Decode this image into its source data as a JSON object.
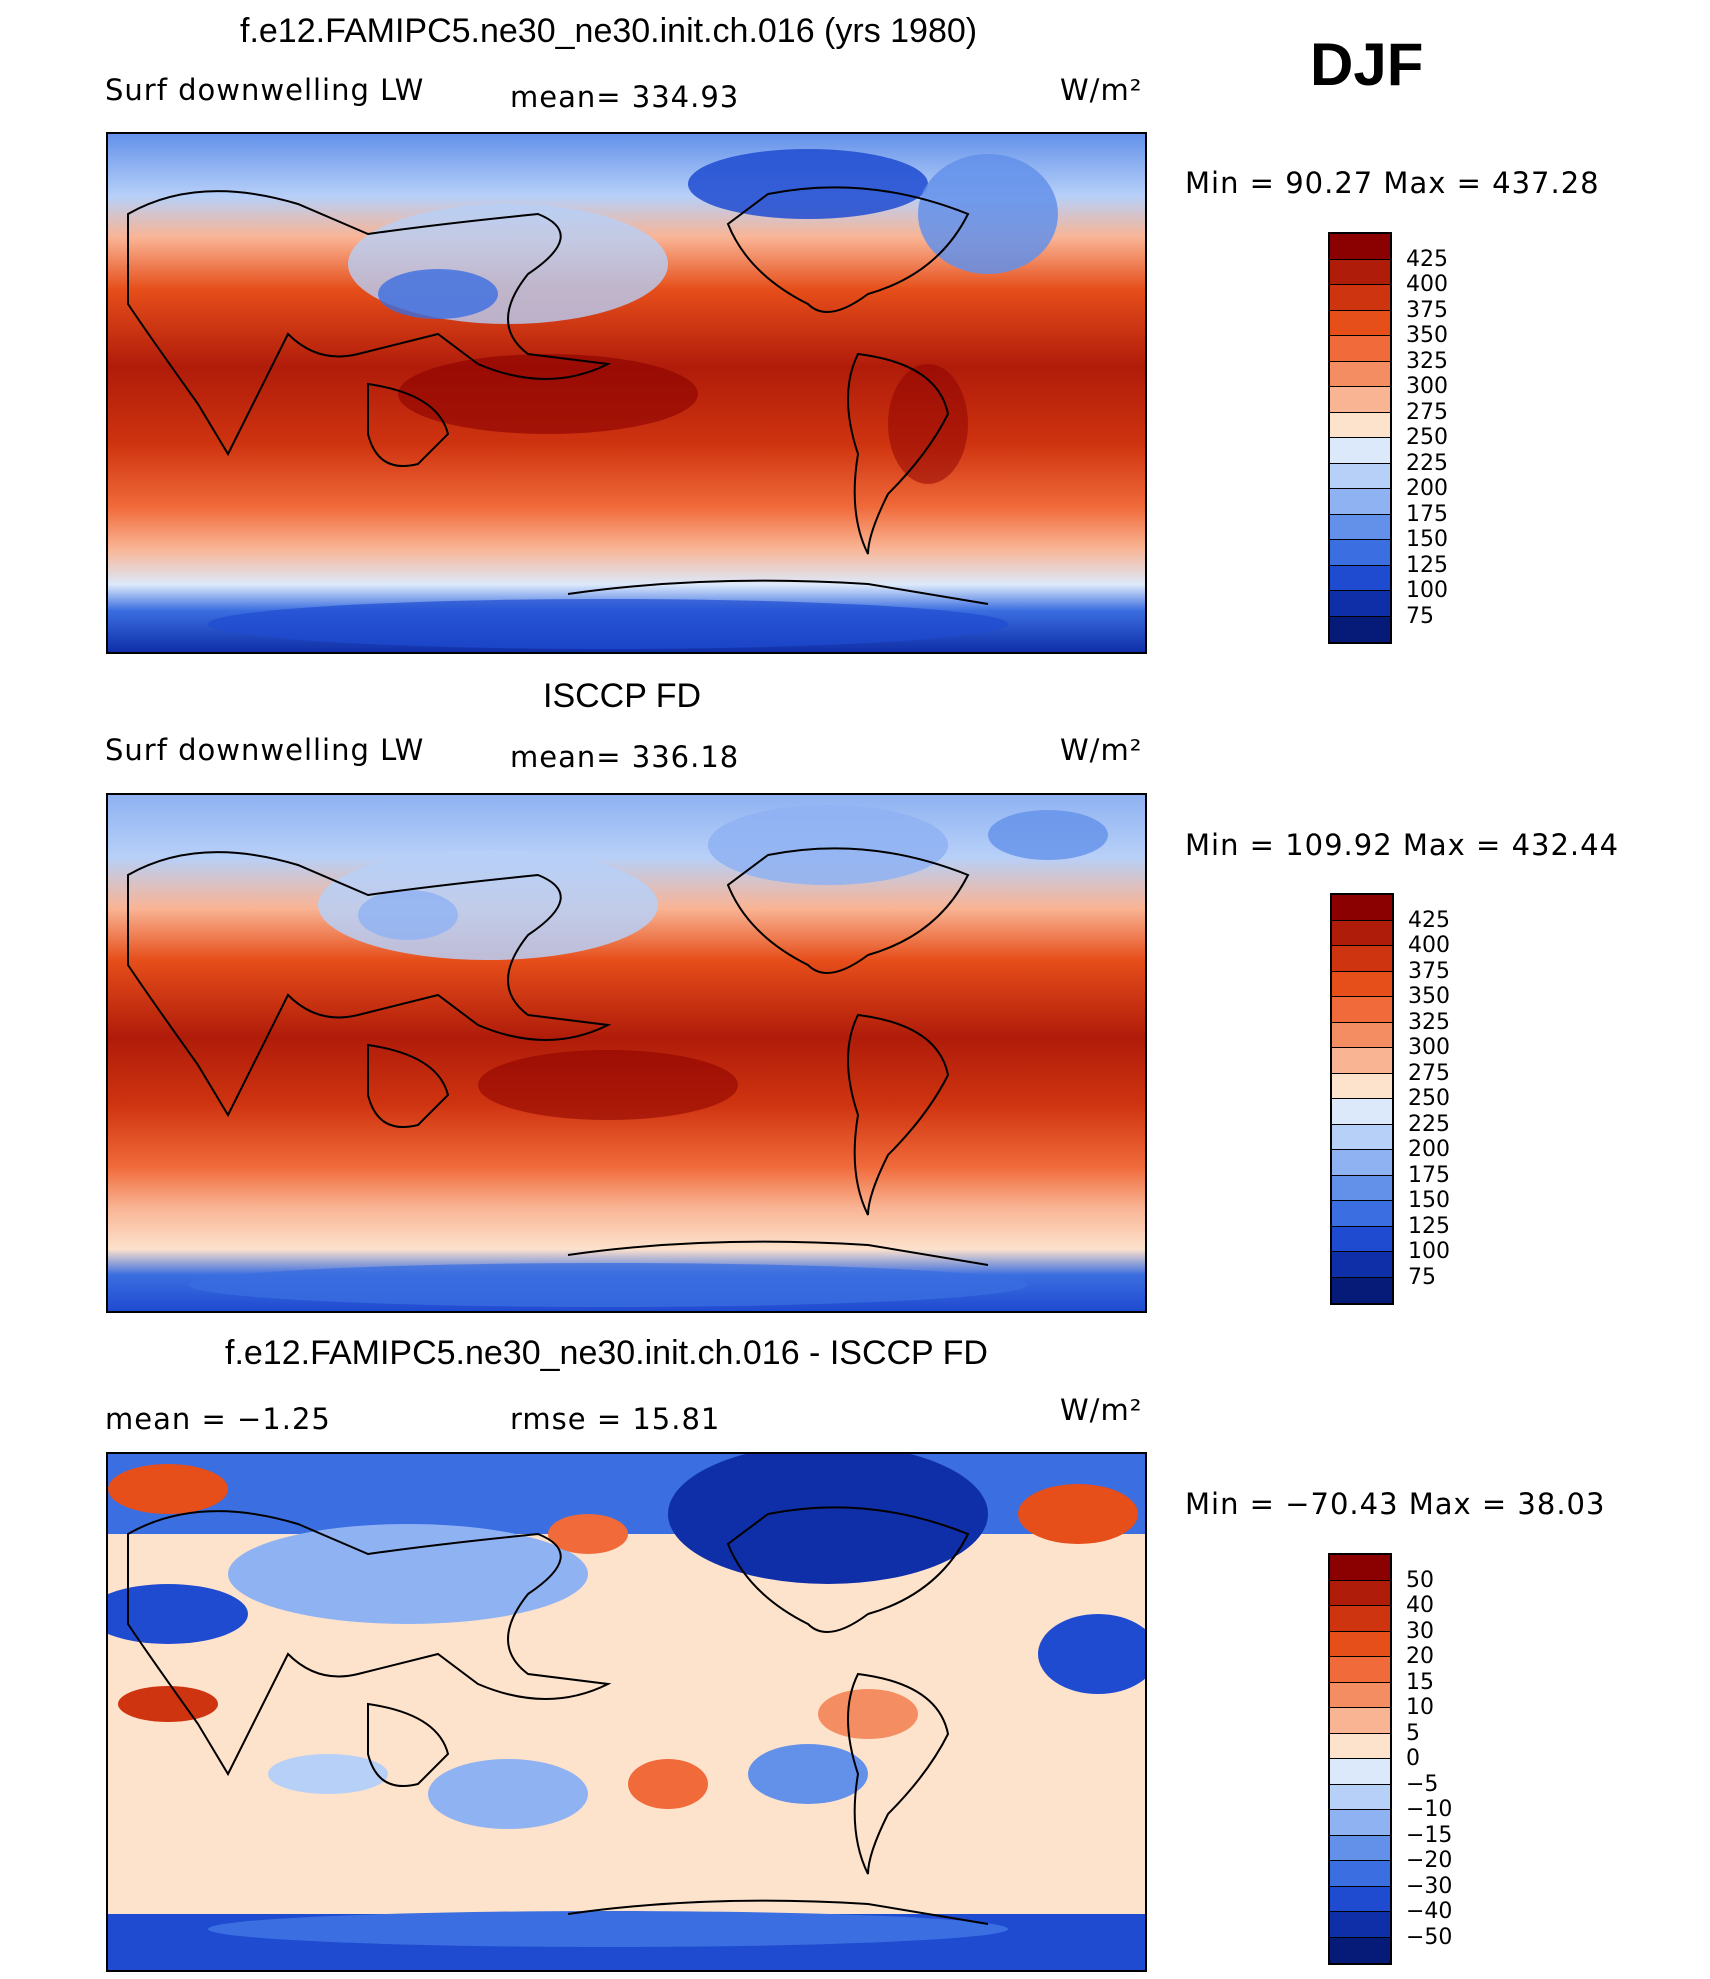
{
  "season": "DJF",
  "units_label": "W/m²",
  "panels": [
    {
      "title": "f.e12.FAMIPC5.ne30_ne30.init.ch.016 (yrs 1980)",
      "left_label": "Surf  downwelling  LW",
      "center_label": "mean=  334.93",
      "units": "W/m²",
      "minmax": "Min  =    90.27  Max  =  437.28",
      "colorbar_labels": [
        "425",
        "400",
        "375",
        "350",
        "325",
        "300",
        "275",
        "250",
        "225",
        "200",
        "175",
        "150",
        "125",
        "100",
        "75"
      ],
      "colorbar_colors": [
        "#8b0000",
        "#b01c0a",
        "#cf3410",
        "#e64e1a",
        "#f06a3a",
        "#f58d62",
        "#f9b494",
        "#fde2cc",
        "#dce9fb",
        "#b7d0f8",
        "#8fb2f2",
        "#6391ea",
        "#3b6ee0",
        "#1f4bd1",
        "#0f2fa8",
        "#061a77"
      ]
    },
    {
      "title": "ISCCP FD",
      "left_label": "Surf  downwelling  LW",
      "center_label": "mean=  336.18",
      "units": "W/m²",
      "minmax": "Min  =  109.92  Max  =  432.44",
      "colorbar_labels": [
        "425",
        "400",
        "375",
        "350",
        "325",
        "300",
        "275",
        "250",
        "225",
        "200",
        "175",
        "150",
        "125",
        "100",
        "75"
      ],
      "colorbar_colors": [
        "#8b0000",
        "#b01c0a",
        "#cf3410",
        "#e64e1a",
        "#f06a3a",
        "#f58d62",
        "#f9b494",
        "#fde2cc",
        "#dce9fb",
        "#b7d0f8",
        "#8fb2f2",
        "#6391ea",
        "#3b6ee0",
        "#1f4bd1",
        "#0f2fa8",
        "#061a77"
      ]
    },
    {
      "title": "f.e12.FAMIPC5.ne30_ne30.init.ch.016 - ISCCP FD",
      "left_label": "mean  =    −1.25",
      "center_label": "rmse  =    15.81",
      "units": "W/m²",
      "minmax": "Min  =  −70.43  Max  =    38.03",
      "colorbar_labels": [
        "50",
        "40",
        "30",
        "20",
        "15",
        "10",
        "5",
        "0",
        "−5",
        "−10",
        "−15",
        "−20",
        "−30",
        "−40",
        "−50"
      ],
      "colorbar_colors": [
        "#8b0000",
        "#b01c0a",
        "#cf3410",
        "#e64e1a",
        "#f06a3a",
        "#f58d62",
        "#f9b494",
        "#fde2cc",
        "#dce9fb",
        "#b7d0f8",
        "#8fb2f2",
        "#6391ea",
        "#3b6ee0",
        "#1f4bd1",
        "#0f2fa8",
        "#061a77"
      ]
    }
  ]
}
